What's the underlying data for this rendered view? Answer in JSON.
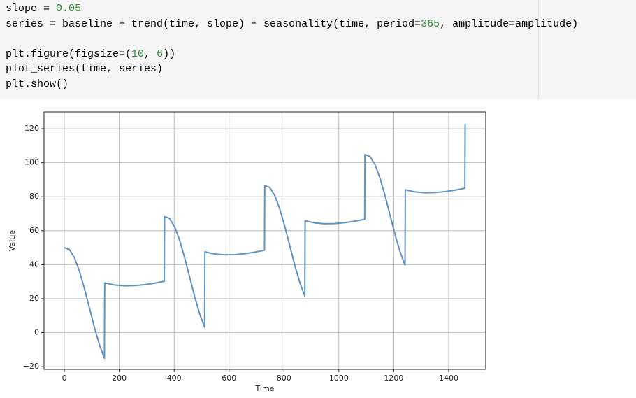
{
  "code_cell": {
    "lines": [
      [
        {
          "text": "slope = ",
          "color": "#000000"
        },
        {
          "text": "0.05",
          "color": "#2e8b3a"
        }
      ],
      [
        {
          "text": "series = baseline + trend(time, slope) + seasonality(time, period=",
          "color": "#000000"
        },
        {
          "text": "365",
          "color": "#2e8b3a"
        },
        {
          "text": ", amplitude=amplitude)",
          "color": "#000000"
        }
      ],
      [],
      [
        {
          "text": "plt.figure(figsize=(",
          "color": "#000000"
        },
        {
          "text": "10",
          "color": "#2e8b3a"
        },
        {
          "text": ", ",
          "color": "#000000"
        },
        {
          "text": "6",
          "color": "#2e8b3a"
        },
        {
          "text": "))",
          "color": "#000000"
        }
      ],
      [
        {
          "text": "plot_series(time, series)",
          "color": "#000000"
        }
      ],
      [
        {
          "text": "plt.show()",
          "color": "#000000"
        }
      ]
    ]
  },
  "chart_data": {
    "type": "line",
    "xlabel": "Time",
    "ylabel": "Value",
    "color": "#5f93c6",
    "grid": true,
    "xlim": [
      -74,
      1535
    ],
    "ylim": [
      -21.6,
      129.9
    ],
    "xticks": [
      0,
      200,
      400,
      600,
      800,
      1000,
      1200,
      1400
    ],
    "yticks": [
      {
        "value": -20,
        "label": "−20"
      },
      0,
      20,
      40,
      60,
      80,
      100,
      120
    ],
    "x": [
      0,
      18,
      37,
      55,
      73,
      91,
      110,
      128,
      146,
      147,
      183,
      219,
      256,
      292,
      328,
      364,
      365,
      383,
      402,
      420,
      438,
      456,
      475,
      493,
      511,
      512,
      548,
      584,
      621,
      657,
      693,
      729,
      730,
      748,
      767,
      785,
      803,
      821,
      840,
      858,
      876,
      877,
      913,
      949,
      986,
      1022,
      1058,
      1094,
      1095,
      1113,
      1132,
      1150,
      1168,
      1186,
      1205,
      1223,
      1241,
      1242,
      1278,
      1314,
      1351,
      1387,
      1423,
      1459,
      1460
    ],
    "values": [
      50,
      48.98,
      44.01,
      36.11,
      26.01,
      14.72,
      2.78,
      -7.24,
      -15.06,
      29.3,
      28.04,
      27.56,
      27.68,
      28.23,
      29.1,
      30.21,
      68.25,
      67.23,
      62.26,
      54.36,
      44.26,
      32.97,
      21.03,
      11.01,
      3.19,
      47.55,
      46.29,
      45.81,
      45.93,
      46.48,
      47.35,
      48.46,
      86.5,
      85.48,
      80.51,
      72.61,
      62.51,
      51.22,
      39.28,
      29.26,
      21.44,
      65.8,
      64.54,
      64.06,
      64.18,
      64.73,
      65.6,
      66.71,
      104.75,
      103.73,
      98.76,
      90.86,
      80.76,
      69.47,
      57.53,
      47.51,
      39.69,
      84.05,
      82.79,
      82.31,
      82.43,
      82.98,
      83.85,
      84.96,
      123
    ]
  }
}
